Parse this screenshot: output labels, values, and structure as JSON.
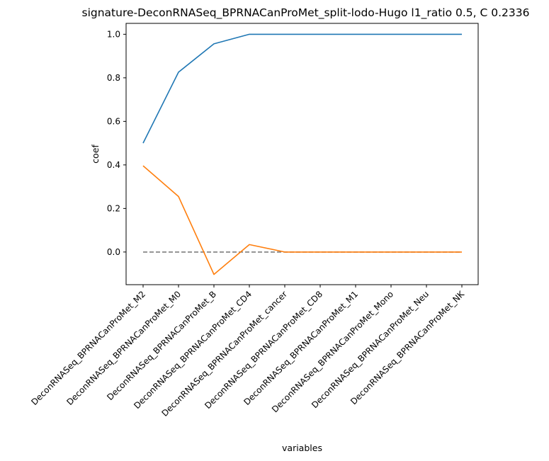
{
  "chart_data": {
    "type": "line",
    "title": "signature-DeconRNASeq_BPRNACanProMet_split-lodo-Hugo l1_ratio 0.5, C 0.2336",
    "xlabel": "variables",
    "ylabel": "coef",
    "categories": [
      "DeconRNASeq_BPRNACanProMet_M2",
      "DeconRNASeq_BPRNACanProMet_M0",
      "DeconRNASeq_BPRNACanProMet_B",
      "DeconRNASeq_BPRNACanProMet_CD4",
      "DeconRNASeq_BPRNACanProMet_cancer",
      "DeconRNASeq_BPRNACanProMet_CD8",
      "DeconRNASeq_BPRNACanProMet_M1",
      "DeconRNASeq_BPRNACanProMet_Mono",
      "DeconRNASeq_BPRNACanProMet_Neu",
      "DeconRNASeq_BPRNACanProMet_NK"
    ],
    "series": [
      {
        "color": "#1f77b4",
        "style": "solid",
        "values": [
          0.5,
          0.826,
          0.956,
          1.0,
          1.0,
          1.0,
          1.0,
          1.0,
          1.0,
          1.0
        ]
      },
      {
        "color": "#ff7f0e",
        "style": "solid",
        "values": [
          0.396,
          0.255,
          -0.103,
          0.034,
          0.0,
          0.0,
          0.0,
          0.0,
          0.0,
          0.0
        ]
      },
      {
        "color": "#7f7f7f",
        "style": "dashed",
        "values": [
          0,
          0,
          0,
          0,
          0,
          0,
          0,
          0,
          0,
          0
        ]
      }
    ],
    "ylim": [
      -0.15,
      1.05
    ],
    "yticks": [
      0.0,
      0.2,
      0.4,
      0.6,
      0.8,
      1.0
    ],
    "ytick_labels": [
      "0.0",
      "0.2",
      "0.4",
      "0.6",
      "0.8",
      "1.0"
    ],
    "grid": false,
    "legend": "none"
  }
}
